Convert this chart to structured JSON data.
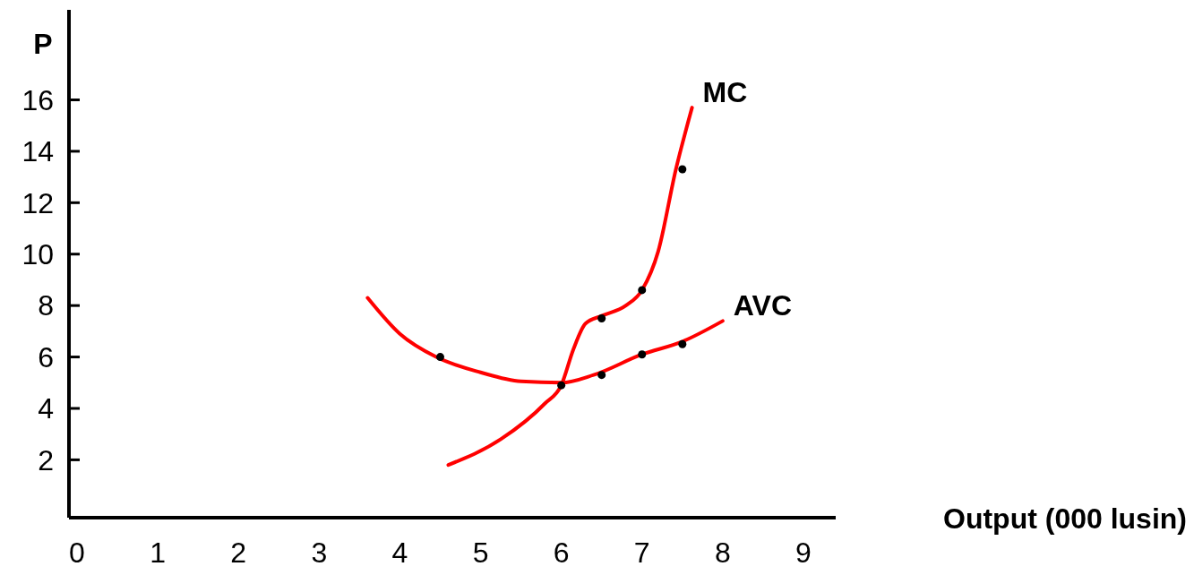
{
  "chart_data": {
    "type": "line",
    "xlabel": "Output (000 lusin)",
    "ylabel": "P",
    "xlim": [
      -0.1,
      9.4
    ],
    "ylim": [
      -0.25,
      19.5
    ],
    "xticks": [
      0,
      1,
      2,
      3,
      4,
      5,
      6,
      7,
      8,
      9
    ],
    "yticks": [
      2,
      4,
      6,
      8,
      10,
      12,
      14,
      16
    ],
    "grid": false,
    "marker": "none",
    "line_style": "solid",
    "series": [
      {
        "name": "AVC",
        "color": "#ff0000",
        "x": [
          3.6,
          4.0,
          4.45,
          5.0,
          5.5,
          6.0,
          6.4,
          7.0,
          7.5,
          8.0
        ],
        "values": [
          8.3,
          6.9,
          6.0,
          5.4,
          5.05,
          5.0,
          5.3,
          6.1,
          6.6,
          7.4
        ]
      },
      {
        "name": "MC",
        "color": "#ff0000",
        "x": [
          4.6,
          5.25,
          5.8,
          6.0,
          6.15,
          6.3,
          6.5,
          6.8,
          7.0,
          7.2,
          7.42,
          7.62
        ],
        "values": [
          1.8,
          2.8,
          4.2,
          4.9,
          6.3,
          7.3,
          7.6,
          8.0,
          8.6,
          10.1,
          13.3,
          15.7
        ]
      },
      {
        "type": "scatter",
        "color": "#000000",
        "marker": "circle",
        "x": [
          4.5,
          6.0,
          6.5,
          7.0,
          7.5,
          6.5,
          7.0,
          7.5
        ],
        "values": [
          6.0,
          4.9,
          5.3,
          6.1,
          6.5,
          7.5,
          8.6,
          13.3
        ]
      }
    ]
  }
}
